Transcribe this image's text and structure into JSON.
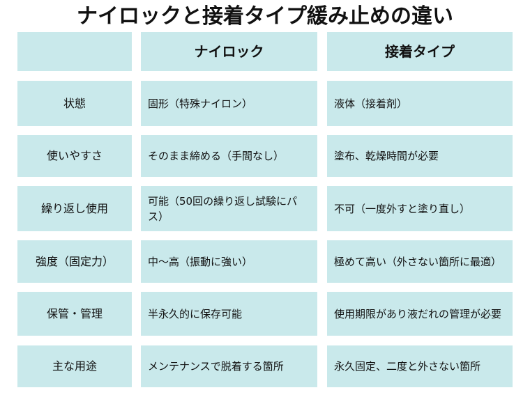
{
  "title": "ナイロックと接着タイプ緩み止めの違い",
  "colors": {
    "cell_background": "#c9e9eb",
    "text": "#111111"
  },
  "table": {
    "headers": [
      "",
      "ナイロック",
      "接着タイプ"
    ],
    "rows": [
      {
        "label": "状態",
        "nylock": "固形（特殊ナイロン）",
        "adhesive": "液体（接着剤）"
      },
      {
        "label": "使いやすさ",
        "nylock": "そのまま締める（手間なし）",
        "adhesive": "塗布、乾燥時間が必要"
      },
      {
        "label": "繰り返し使用",
        "nylock": "可能（50回の繰り返し試験にパス）",
        "adhesive": "不可（一度外すと塗り直し）"
      },
      {
        "label": "強度（固定力）",
        "nylock": "中〜高（振動に強い）",
        "adhesive": "極めて高い（外さない箇所に最適）"
      },
      {
        "label": "保管・管理",
        "nylock": "半永久的に保存可能",
        "adhesive": "使用期限があり液だれの管理が必要"
      },
      {
        "label": "主な用途",
        "nylock": "メンテナンスで脱着する箇所",
        "adhesive": "永久固定、二度と外さない箇所"
      }
    ]
  }
}
